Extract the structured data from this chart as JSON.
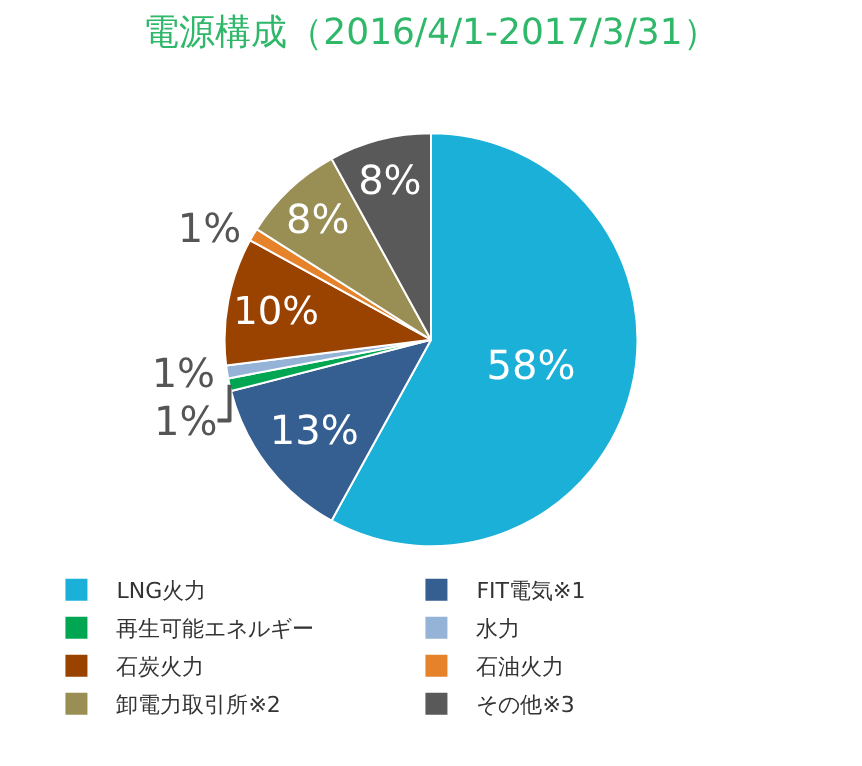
{
  "chart_data": {
    "type": "pie",
    "title": "電源構成（2016/4/1-2017/3/31）",
    "categories": [
      "LNG火力",
      "FIT電気※1",
      "再生可能エネルギー",
      "水力",
      "石炭火力",
      "石油火力",
      "卸電力取引所※2",
      "その他※3"
    ],
    "values": [
      58,
      13,
      1,
      1,
      10,
      1,
      8,
      8
    ],
    "value_labels": [
      "58%",
      "13%",
      "1%",
      "1%",
      "10%",
      "1%",
      "8%",
      "8%"
    ],
    "colors": [
      "#1ab0d8",
      "#355e91",
      "#00a651",
      "#95b3d7",
      "#9a4200",
      "#e6822a",
      "#998f55",
      "#595959"
    ],
    "legend": "bottom"
  }
}
